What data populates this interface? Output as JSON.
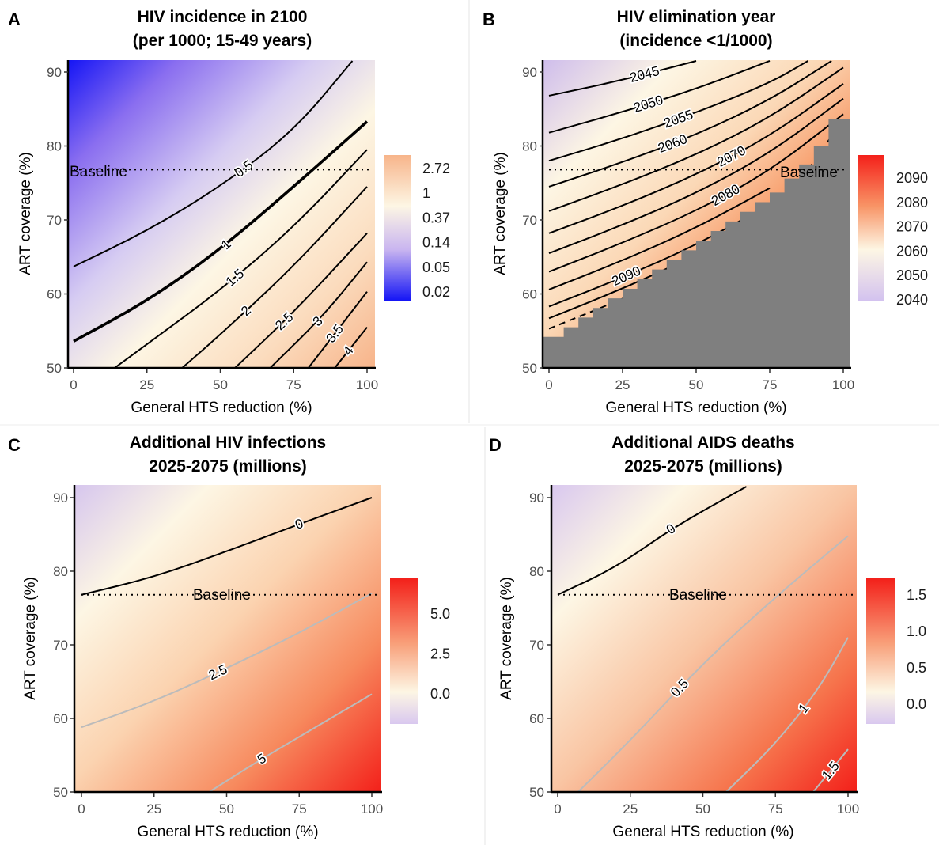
{
  "chart_data": [
    {
      "panel": "A",
      "type": "heatmap",
      "title": "HIV incidence in 2100",
      "subtitle": "(per 1000; 15-49 years)",
      "xlabel": "General HTS reduction (%)",
      "ylabel": "ART coverage (%)",
      "xlim": [
        0,
        100
      ],
      "ylim": [
        50,
        91.5
      ],
      "xticks": [
        "0",
        "25",
        "50",
        "75",
        "100"
      ],
      "yticks": [
        "50",
        "60",
        "70",
        "80",
        "90"
      ],
      "legend_ticks": [
        "2.72",
        "1",
        "0.37",
        "0.14",
        "0.05",
        "0.02"
      ],
      "baseline_label": "Baseline",
      "baseline_y": 76.8,
      "colors": {
        "low": "#1515f5",
        "mid": "#fdf6e4",
        "high": "#f7b48a"
      },
      "contours": [
        {
          "level": "0.5",
          "points": [
            [
              0,
              63.7
            ],
            [
              25,
              68.5
            ],
            [
              50,
              74.5
            ],
            [
              75,
              82.0
            ],
            [
              95,
              91.5
            ]
          ]
        },
        {
          "level": "1",
          "points": [
            [
              0,
              53.6
            ],
            [
              25,
              59.0
            ],
            [
              50,
              66.0
            ],
            [
              75,
              74.5
            ],
            [
              100,
              83.3
            ]
          ]
        },
        {
          "level": "1.5",
          "points": [
            [
              14,
              50
            ],
            [
              25,
              53.2
            ],
            [
              50,
              60.5
            ],
            [
              75,
              69.0
            ],
            [
              100,
              79.5
            ]
          ]
        },
        {
          "level": "2",
          "points": [
            [
              37,
              50
            ],
            [
              50,
              54.5
            ],
            [
              75,
              63.7
            ],
            [
              100,
              74.5
            ]
          ]
        },
        {
          "level": "2.5",
          "points": [
            [
              55,
              50
            ],
            [
              75,
              57.5
            ],
            [
              100,
              68.2
            ]
          ]
        },
        {
          "level": "3",
          "points": [
            [
              67,
              50
            ],
            [
              85,
              57.0
            ],
            [
              100,
              64.3
            ]
          ]
        },
        {
          "level": "3.5",
          "points": [
            [
              80,
              50
            ],
            [
              100,
              60.3
            ]
          ]
        },
        {
          "level": "4",
          "points": [
            [
              89,
              50
            ],
            [
              100,
              55.5
            ]
          ]
        }
      ]
    },
    {
      "panel": "B",
      "type": "heatmap",
      "title": "HIV elimination year",
      "subtitle": "(incidence <1/1000)",
      "xlabel": "General HTS reduction (%)",
      "ylabel": "ART coverage (%)",
      "xlim": [
        0,
        100
      ],
      "ylim": [
        50,
        91.5
      ],
      "xticks": [
        "0",
        "25",
        "50",
        "75",
        "100"
      ],
      "yticks": [
        "50",
        "60",
        "70",
        "80",
        "90"
      ],
      "legend_ticks": [
        "2090",
        "2080",
        "2070",
        "2060",
        "2050",
        "2040"
      ],
      "baseline_label": "Baseline",
      "baseline_y": 76.8,
      "colors": {
        "low": "#d9c8ef",
        "mid": "#fdf6e4",
        "high": "#f4201a",
        "na": "#7f7f7f"
      },
      "contour_labels": [
        "2045",
        "2050",
        "2055",
        "2060",
        "2070",
        "2080",
        "2090"
      ],
      "contours": [
        {
          "level": "2045",
          "points": [
            [
              0,
              86.8
            ],
            [
              25,
              88.9
            ],
            [
              50,
              91.5
            ]
          ]
        },
        {
          "level": "2050",
          "points": [
            [
              0,
              81.8
            ],
            [
              25,
              84.6
            ],
            [
              50,
              87.7
            ],
            [
              75,
              91.5
            ]
          ]
        },
        {
          "level": "2055",
          "points": [
            [
              0,
              78.0
            ],
            [
              25,
              81.0
            ],
            [
              50,
              84.5
            ],
            [
              75,
              88.5
            ],
            [
              88,
              91.5
            ]
          ]
        },
        {
          "level": "2060",
          "points": [
            [
              0,
              74.5
            ],
            [
              25,
              77.8
            ],
            [
              50,
              81.5
            ],
            [
              75,
              86.2
            ],
            [
              96,
              91.5
            ]
          ]
        },
        {
          "level": "2065",
          "points": [
            [
              0,
              71.2
            ],
            [
              25,
              74.8
            ],
            [
              50,
              78.8
            ],
            [
              75,
              83.8
            ],
            [
              100,
              90.6
            ]
          ]
        },
        {
          "level": "2070",
          "points": [
            [
              0,
              68.2
            ],
            [
              25,
              71.9
            ],
            [
              50,
              76.1
            ],
            [
              75,
              81.3
            ],
            [
              100,
              88.4
            ]
          ]
        },
        {
          "level": "2075",
          "points": [
            [
              0,
              65.5
            ],
            [
              25,
              69.3
            ],
            [
              50,
              73.6
            ],
            [
              75,
              79.0
            ],
            [
              100,
              86.4
            ]
          ]
        },
        {
          "level": "2080",
          "points": [
            [
              0,
              63.0
            ],
            [
              25,
              66.9
            ],
            [
              50,
              71.2
            ],
            [
              75,
              76.6
            ],
            [
              100,
              84.3
            ]
          ]
        },
        {
          "level": "2085",
          "points": [
            [
              0,
              60.6
            ],
            [
              25,
              64.5
            ],
            [
              50,
              68.9
            ],
            [
              75,
              74.3
            ]
          ]
        },
        {
          "level": "2090",
          "points": [
            [
              0,
              58.3
            ],
            [
              25,
              62.2
            ],
            [
              50,
              66.6
            ],
            [
              75,
              72.1
            ]
          ]
        },
        {
          "level": "2095",
          "points": [
            [
              0,
              56.7
            ],
            [
              25,
              60.7
            ],
            [
              50,
              65.2
            ],
            [
              75,
              70.6
            ]
          ]
        },
        {
          "level": "2100",
          "points": [
            [
              0,
              55.3
            ],
            [
              25,
              59.3
            ],
            [
              50,
              63.8
            ],
            [
              75,
              69.3
            ],
            [
              100,
              83.6
            ]
          ],
          "dashed": true
        }
      ]
    },
    {
      "panel": "C",
      "type": "heatmap",
      "title": "Additional HIV infections",
      "subtitle": "2025-2075 (millions)",
      "xlabel": "General HTS reduction (%)",
      "ylabel": "ART coverage (%)",
      "xlim": [
        0,
        100
      ],
      "ylim": [
        50,
        91.5
      ],
      "xticks": [
        "0",
        "25",
        "50",
        "75",
        "100"
      ],
      "yticks": [
        "50",
        "60",
        "70",
        "80",
        "90"
      ],
      "legend_ticks": [
        "5.0",
        "2.5",
        "0.0"
      ],
      "baseline_label": "Baseline",
      "baseline_y": 76.8,
      "colors": {
        "low": "#d9c8ef",
        "mid": "#fdf6e4",
        "high": "#f4201a"
      },
      "contours": [
        {
          "level": "0",
          "points": [
            [
              0,
              76.8
            ],
            [
              25,
              79.2
            ],
            [
              50,
              82.7
            ],
            [
              75,
              86.4
            ],
            [
              100,
              90.0
            ]
          ],
          "color": "#000000"
        },
        {
          "level": "2.5",
          "points": [
            [
              0,
              58.8
            ],
            [
              25,
              62.3
            ],
            [
              50,
              66.8
            ],
            [
              75,
              71.6
            ],
            [
              100,
              77.0
            ]
          ],
          "color": "#bbbbbb"
        },
        {
          "level": "5",
          "points": [
            [
              44,
              50
            ],
            [
              60,
              54.0
            ],
            [
              75,
              57.5
            ],
            [
              100,
              63.3
            ]
          ],
          "color": "#bbbbbb"
        }
      ]
    },
    {
      "panel": "D",
      "type": "heatmap",
      "title": "Additional AIDS deaths",
      "subtitle": "2025-2075 (millions)",
      "xlabel": "General HTS reduction (%)",
      "ylabel": "ART coverage (%)",
      "xlim": [
        0,
        100
      ],
      "ylim": [
        50,
        91.5
      ],
      "xticks": [
        "0",
        "25",
        "50",
        "75",
        "100"
      ],
      "yticks": [
        "50",
        "60",
        "70",
        "80",
        "90"
      ],
      "legend_ticks": [
        "1.5",
        "1.0",
        "0.5",
        "0.0"
      ],
      "baseline_label": "Baseline",
      "baseline_y": 76.8,
      "colors": {
        "low": "#d9c8ef",
        "mid": "#fdf6e4",
        "high": "#f4201a"
      },
      "contours": [
        {
          "level": "0",
          "points": [
            [
              0,
              76.8
            ],
            [
              20,
              80.5
            ],
            [
              40,
              86.0
            ],
            [
              65,
              91.5
            ]
          ],
          "color": "#000000"
        },
        {
          "level": "0.5",
          "points": [
            [
              7,
              50
            ],
            [
              25,
              57.0
            ],
            [
              50,
              67.5
            ],
            [
              75,
              76.5
            ],
            [
              100,
              84.8
            ]
          ],
          "color": "#bbbbbb"
        },
        {
          "level": "1",
          "points": [
            [
              58,
              50
            ],
            [
              75,
              56.5
            ],
            [
              90,
              64.0
            ],
            [
              100,
              71.0
            ]
          ],
          "color": "#bbbbbb"
        },
        {
          "level": "1.5",
          "points": [
            [
              88,
              50
            ],
            [
              100,
              55.8
            ]
          ],
          "color": "#bbbbbb"
        }
      ]
    }
  ]
}
